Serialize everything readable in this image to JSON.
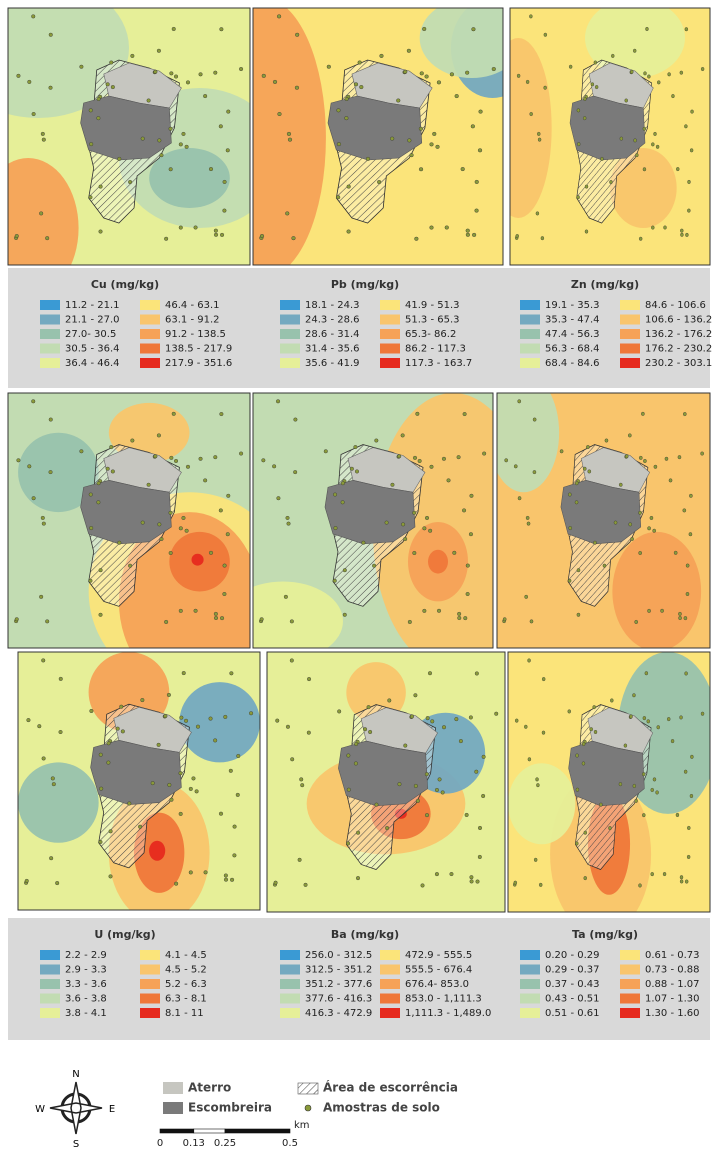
{
  "class_colors": [
    "#3a9ad4",
    "#74a9c0",
    "#98c2ad",
    "#c2dcb2",
    "#e6ef98",
    "#fbe47a",
    "#f9c56c",
    "#f6a257",
    "#ef783a",
    "#e62a1e"
  ],
  "legends": [
    {
      "title": "Cu (mg/kg)",
      "classes": [
        "11.2 - 21.1",
        "21.1 - 27.0",
        "27.0- 30.5",
        "30.5 - 36.4",
        "36.4 - 46.4",
        "46.4 - 63.1",
        "63.1 - 91.2",
        "91.2 - 138.5",
        "138.5 - 217.9",
        "217.9 - 351.6"
      ]
    },
    {
      "title": "Pb (mg/kg)",
      "classes": [
        "18.1 - 24.3",
        "24.3 - 28.6",
        "28.6 - 31.4",
        "31.4 - 35.6",
        "35.6 - 41.9",
        "41.9 - 51.3",
        "51.3 - 65.3",
        "65.3- 86.2",
        "86.2 - 117.3",
        "117.3 - 163.7"
      ]
    },
    {
      "title": "Zn (mg/kg)",
      "classes": [
        "19.1 - 35.3",
        "35.3 - 47.4",
        "47.4 - 56.3",
        "56.3 - 68.4",
        "68.4 - 84.6",
        "84.6 - 106.6",
        "106.6 - 136.2",
        "136.2 - 176.2",
        "176.2 - 230.2",
        "230.2 - 303.1"
      ]
    },
    {
      "title": "U (mg/kg)",
      "classes": [
        "2.2 - 2.9",
        "2.9 - 3.3",
        "3.3 - 3.6",
        "3.6 - 3.8",
        "3.8 - 4.1",
        "4.1 - 4.5",
        "4.5 - 5.2",
        "5.2 - 6.3",
        "6.3 - 8.1",
        "8.1 - 11"
      ]
    },
    {
      "title": "Ba (mg/kg)",
      "classes": [
        "256.0 - 312.5",
        "312.5 - 351.2",
        "351.2 - 377.6",
        "377.6 - 416.3",
        "416.3 - 472.9",
        "472.9 - 555.5",
        "555.5 - 676.4",
        "676.4- 853.0",
        "853.0 - 1,111.3",
        "1,111.3 - 1,489.0"
      ]
    },
    {
      "title": "Ta (mg/kg)",
      "classes": [
        "0.20 - 0.29",
        "0.29 - 0.37",
        "0.37 - 0.43",
        "0.43 - 0.51",
        "0.51 - 0.61",
        "0.61 - 0.73",
        "0.73 - 0.88",
        "0.88 - 1.07",
        "1.07 - 1.30",
        "1.30 - 1.60"
      ]
    }
  ],
  "key": {
    "aterro": "Aterro",
    "escombreira": "Escombreira",
    "runoff": "Área de escorrência",
    "samples": "Amostras de solo"
  },
  "compass": {
    "n": "N",
    "s": "S",
    "e": "E",
    "w": "W"
  },
  "scale": {
    "ticks": [
      0,
      0.13,
      0.25,
      0.5
    ],
    "unit": "km"
  }
}
